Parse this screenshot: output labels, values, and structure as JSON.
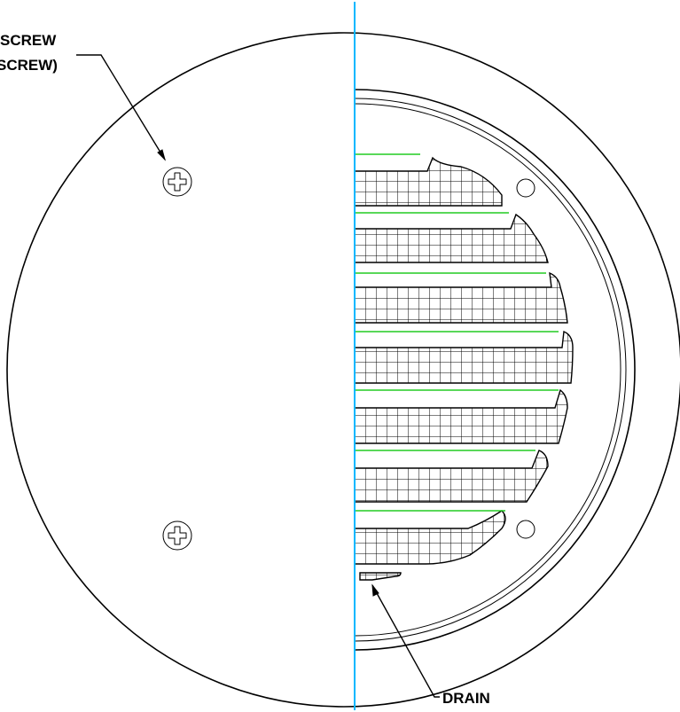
{
  "labels": {
    "screw_line1": "SCREW",
    "screw_line2": "SCREW)",
    "drain": "DRAIN"
  },
  "colors": {
    "centerline": "#00b7ff",
    "louver_lines": "#22cc22",
    "outline": "#000000",
    "background": "#ffffff"
  }
}
